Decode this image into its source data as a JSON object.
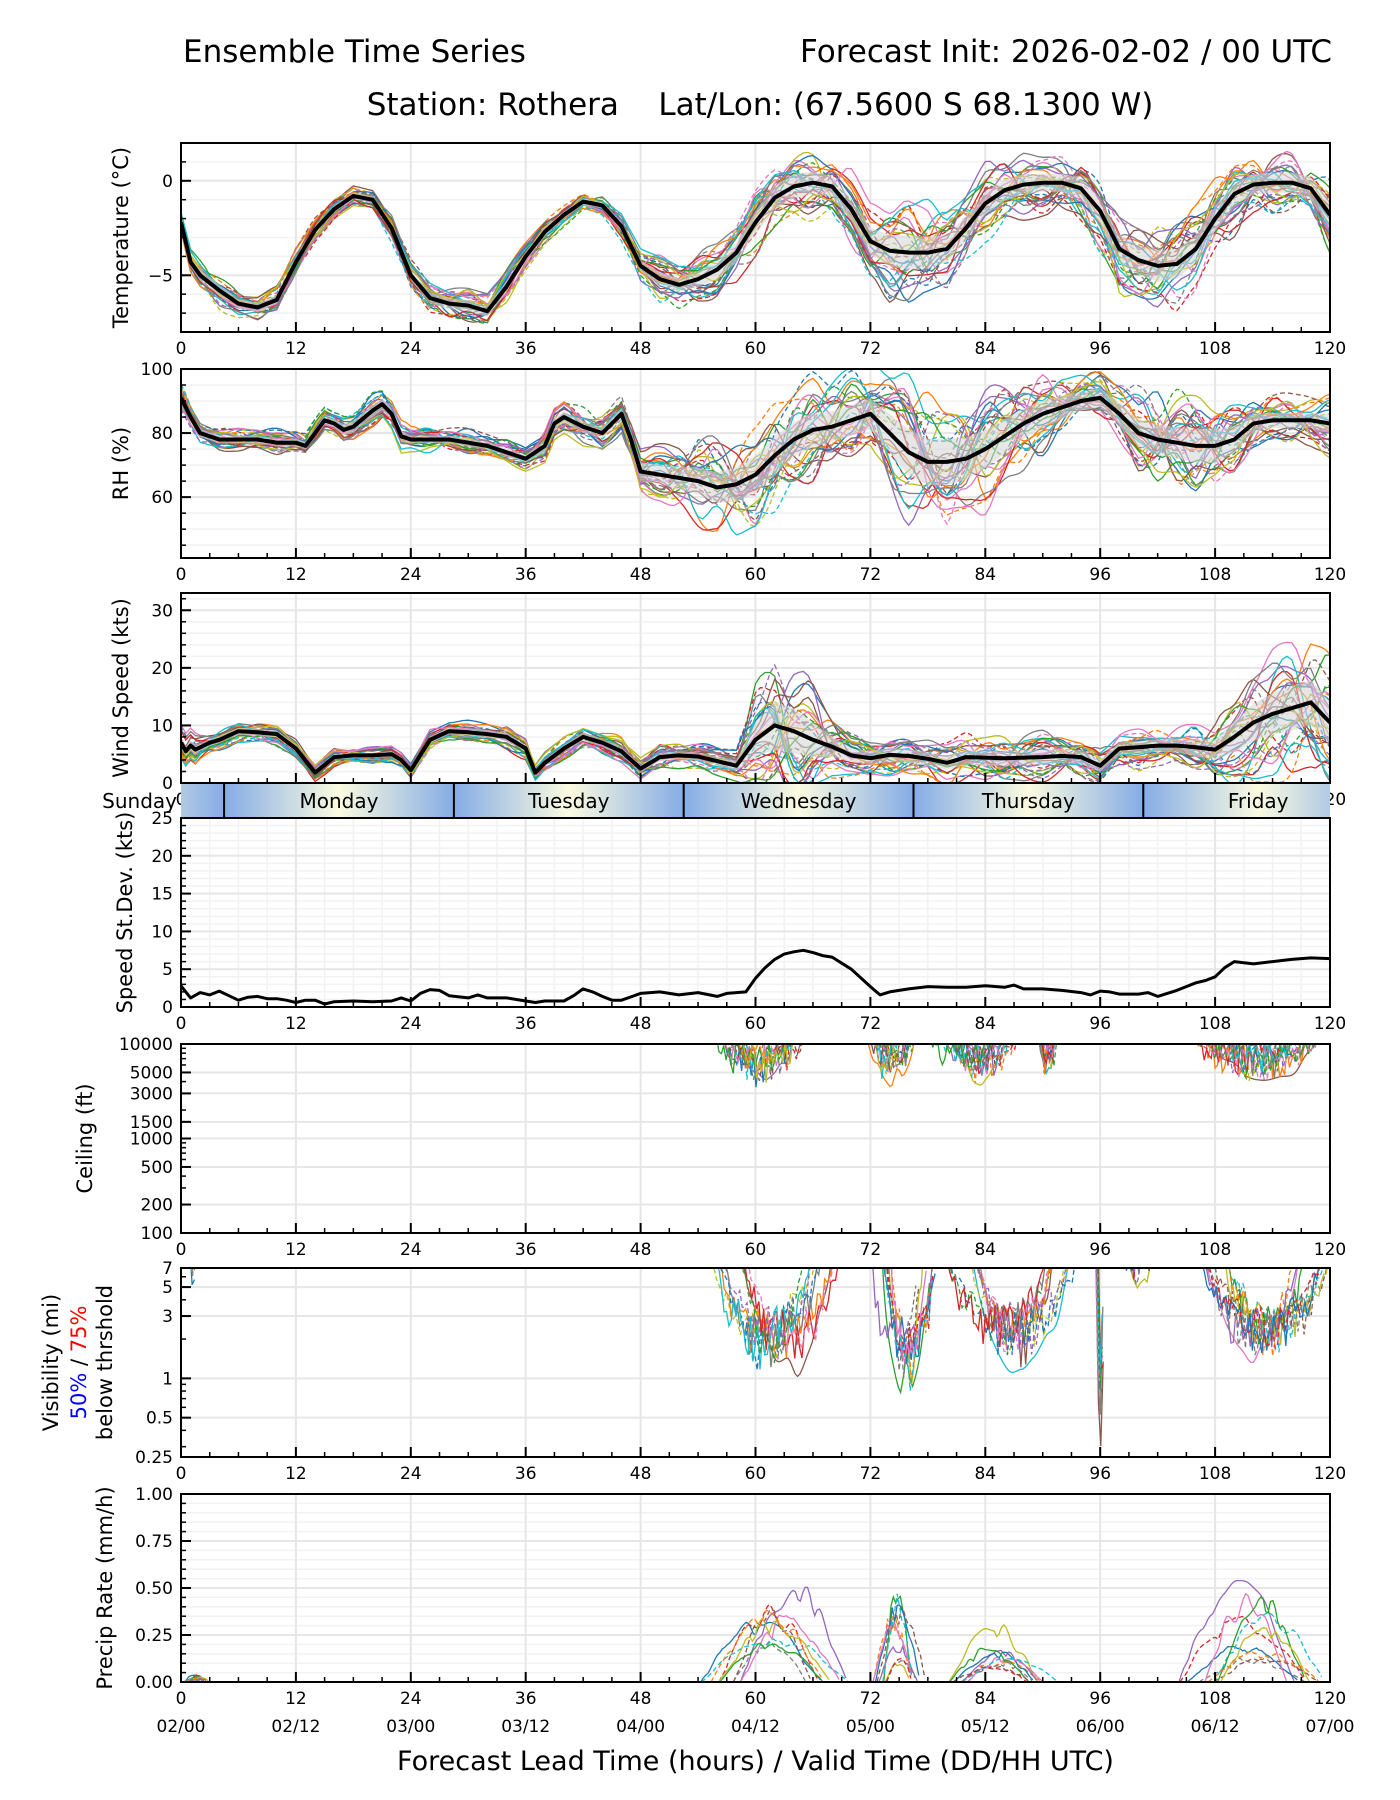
{
  "header": {
    "title_left": "Ensemble Time Series",
    "title_right": "Forecast Init: 2026-02-02 / 00 UTC",
    "station_line": "Station: Rothera    Lat/Lon: (67.5600 S 68.1300 W)"
  },
  "colors": {
    "members": [
      "#1f77b4",
      "#ff7f0e",
      "#2ca02c",
      "#d62728",
      "#9467bd",
      "#8c564b",
      "#e377c2",
      "#7f7f7f",
      "#bcbd22",
      "#17becf"
    ],
    "mean": "#000000",
    "spread": "#d3d3d3",
    "grid": "#e6e6e6",
    "day_edge": "#85ace6",
    "day_mid": "#fbfbe0",
    "vis_50": "#0000ff",
    "vis_75": "#ff0000"
  },
  "x_axis": {
    "range": [
      0,
      120
    ],
    "lead_ticks": [
      "0",
      "12",
      "24",
      "36",
      "48",
      "60",
      "72",
      "84",
      "96",
      "108",
      "120"
    ],
    "valid_ticks": [
      "02/00",
      "02/12",
      "03/00",
      "03/12",
      "04/00",
      "04/12",
      "05/00",
      "05/12",
      "06/00",
      "06/12",
      "07/00"
    ],
    "xlabel": "Forecast Lead Time (hours) / Valid Time (DD/HH UTC)"
  },
  "day_band": {
    "boundaries_hours": [
      4.5,
      28.5,
      52.5,
      76.5,
      100.5
    ],
    "labels": [
      {
        "label": "Sunday",
        "start": -19.5,
        "end": 4.5
      },
      {
        "label": "Monday",
        "start": 4.5,
        "end": 28.5
      },
      {
        "label": "Tuesday",
        "start": 28.5,
        "end": 52.5
      },
      {
        "label": "Wednesday",
        "start": 52.5,
        "end": 76.5
      },
      {
        "label": "Thursday",
        "start": 76.5,
        "end": 100.5
      },
      {
        "label": "Friday",
        "start": 100.5,
        "end": 124.5
      }
    ]
  },
  "chart_data": [
    {
      "type": "line",
      "id": "temperature",
      "ylabel": "Temperature (°C)",
      "ylim": [
        -8,
        2
      ],
      "yticks": [
        0,
        -5
      ],
      "ytick_labels": [
        "0",
        "−5"
      ],
      "grid": true,
      "ensemble_members": 30,
      "mean_x": [
        0,
        1,
        2,
        4,
        6,
        8,
        10,
        12,
        14,
        16,
        18,
        20,
        22,
        24,
        26,
        28,
        30,
        32,
        34,
        36,
        38,
        40,
        42,
        44,
        46,
        48,
        50,
        52,
        54,
        56,
        58,
        60,
        62,
        64,
        66,
        68,
        70,
        72,
        74,
        76,
        78,
        80,
        82,
        84,
        86,
        88,
        90,
        92,
        94,
        96,
        98,
        100,
        102,
        104,
        106,
        108,
        110,
        112,
        114,
        116,
        118,
        120
      ],
      "mean": [
        -2.2,
        -4.3,
        -5.0,
        -5.8,
        -6.5,
        -6.7,
        -6.3,
        -4.3,
        -2.6,
        -1.5,
        -0.8,
        -1.0,
        -2.5,
        -5.0,
        -6.2,
        -6.5,
        -6.6,
        -6.9,
        -5.6,
        -4.0,
        -2.7,
        -1.8,
        -1.1,
        -1.3,
        -2.4,
        -4.5,
        -5.2,
        -5.5,
        -5.2,
        -4.7,
        -3.8,
        -2.2,
        -0.9,
        -0.3,
        -0.1,
        -0.3,
        -1.5,
        -3.2,
        -3.7,
        -3.8,
        -3.8,
        -3.6,
        -2.5,
        -1.2,
        -0.5,
        -0.2,
        -0.1,
        -0.1,
        -0.4,
        -1.6,
        -3.6,
        -4.2,
        -4.5,
        -4.4,
        -3.6,
        -2.0,
        -0.7,
        -0.2,
        -0.1,
        -0.1,
        -0.4,
        -1.8
      ],
      "spread_halfwidth": [
        0.3,
        0.4,
        0.5,
        0.5,
        0.4,
        0.4,
        0.4,
        0.4,
        0.3,
        0.3,
        0.3,
        0.3,
        0.4,
        0.4,
        0.5,
        0.5,
        0.5,
        0.5,
        0.5,
        0.4,
        0.4,
        0.3,
        0.3,
        0.3,
        0.4,
        0.5,
        0.6,
        0.6,
        0.7,
        0.8,
        0.9,
        1.0,
        1.1,
        1.1,
        1.0,
        0.9,
        1.0,
        1.2,
        1.4,
        1.5,
        1.4,
        1.2,
        1.1,
        1.0,
        0.9,
        0.9,
        0.8,
        0.8,
        0.9,
        1.1,
        1.3,
        1.3,
        1.4,
        1.3,
        1.2,
        1.1,
        1.0,
        0.9,
        0.9,
        0.9,
        1.0,
        1.2
      ]
    },
    {
      "type": "line",
      "id": "rh",
      "ylabel": "RH (%)",
      "ylim": [
        41,
        100
      ],
      "yticks": [
        100,
        80,
        60
      ],
      "ytick_labels": [
        "100",
        "80",
        "60"
      ],
      "grid": true,
      "ensemble_members": 30,
      "mean_x": [
        0,
        1,
        2,
        4,
        6,
        8,
        10,
        12,
        13,
        14,
        15,
        16,
        17,
        18,
        20,
        21,
        22,
        23,
        24,
        26,
        28,
        30,
        32,
        34,
        36,
        38,
        39,
        40,
        42,
        44,
        46,
        47,
        48,
        50,
        52,
        54,
        56,
        58,
        60,
        62,
        64,
        66,
        68,
        70,
        72,
        74,
        76,
        78,
        80,
        82,
        84,
        86,
        88,
        90,
        92,
        94,
        96,
        98,
        100,
        102,
        104,
        106,
        108,
        110,
        112,
        114,
        116,
        118,
        120
      ],
      "mean": [
        91,
        85,
        80,
        78,
        78,
        78,
        77,
        77,
        76,
        80,
        84,
        83,
        81,
        82,
        87,
        89,
        86,
        79,
        78,
        78,
        78,
        77,
        76,
        74,
        72,
        76,
        83,
        85,
        82,
        80,
        86,
        78,
        68,
        67,
        66,
        65,
        63,
        64,
        67,
        73,
        78,
        81,
        82,
        84,
        86,
        80,
        74,
        71,
        71,
        72,
        75,
        79,
        83,
        86,
        88,
        90,
        91,
        86,
        80,
        78,
        77,
        76,
        76,
        78,
        83,
        84,
        84,
        84,
        83
      ],
      "spread_halfwidth": [
        2,
        2,
        2,
        2,
        2,
        2,
        2,
        2,
        2,
        2,
        2,
        2,
        3,
        3,
        3,
        3,
        3,
        3,
        2,
        2,
        2,
        2,
        2,
        2,
        2,
        3,
        3,
        3,
        3,
        3,
        3,
        4,
        5,
        5,
        6,
        7,
        8,
        9,
        10,
        10,
        9,
        9,
        8,
        8,
        8,
        10,
        12,
        12,
        12,
        11,
        10,
        9,
        8,
        7,
        6,
        5,
        5,
        6,
        7,
        8,
        8,
        9,
        9,
        7,
        5,
        4,
        4,
        4,
        5
      ]
    },
    {
      "type": "line",
      "id": "wind_speed",
      "ylabel": "Wind Speed (kts)",
      "ylim": [
        0,
        33
      ],
      "yticks": [
        0,
        10,
        20,
        30
      ],
      "ytick_labels": [
        "0",
        "10",
        "20",
        "30"
      ],
      "grid": true,
      "ensemble_members": 30,
      "mean_x": [
        0,
        0.5,
        1,
        1.5,
        2,
        3,
        4,
        6,
        8,
        10,
        12,
        14,
        16,
        18,
        20,
        22,
        23,
        24,
        26,
        28,
        30,
        32,
        34,
        36,
        37,
        38,
        40,
        42,
        44,
        46,
        48,
        50,
        52,
        54,
        56,
        58,
        60,
        62,
        64,
        66,
        68,
        70,
        72,
        74,
        76,
        78,
        80,
        82,
        84,
        86,
        88,
        90,
        92,
        94,
        96,
        98,
        100,
        102,
        104,
        106,
        108,
        110,
        112,
        114,
        116,
        118,
        120
      ],
      "mean": [
        7,
        5.5,
        6.5,
        5.8,
        6.2,
        7,
        7.5,
        9,
        8.8,
        8.5,
        6,
        1.8,
        4.5,
        4.8,
        4.8,
        5,
        4,
        2.2,
        7.5,
        9,
        8.8,
        8.5,
        8,
        6,
        1.8,
        3.5,
        6,
        8,
        7,
        5.5,
        2.5,
        4.5,
        4.8,
        4.6,
        3.8,
        3,
        7.5,
        10,
        9,
        7.5,
        6.3,
        4.8,
        4.3,
        4.9,
        4.7,
        4.2,
        3.5,
        4.5,
        4.4,
        4.3,
        4.4,
        4.5,
        4.7,
        4.5,
        3,
        6,
        6.2,
        6.5,
        6.5,
        6.2,
        5.8,
        8,
        10.5,
        12,
        13,
        14,
        10.5
      ],
      "spread_halfwidth": [
        1.5,
        1.5,
        1.5,
        1.5,
        1.2,
        1,
        1,
        1,
        1,
        1,
        1,
        0.8,
        0.8,
        0.8,
        0.8,
        0.9,
        0.9,
        0.8,
        1,
        1,
        1,
        1,
        1,
        1,
        0.9,
        1,
        1,
        1.2,
        1.2,
        1.2,
        1,
        1.2,
        1.2,
        1.2,
        1.3,
        1.5,
        5,
        7,
        6.5,
        5,
        3,
        2,
        2,
        2,
        2,
        2,
        2,
        2.2,
        2.2,
        2.2,
        2.2,
        2.2,
        2,
        2,
        1.8,
        1.8,
        1.8,
        1.8,
        2,
        2.5,
        3,
        4.5,
        5.5,
        6,
        6.5,
        6.5,
        6
      ]
    },
    {
      "type": "line",
      "id": "speed_stdev",
      "ylabel": "Speed St.Dev. (kts)",
      "ylim": [
        0,
        25
      ],
      "yticks": [
        0,
        5,
        10,
        15,
        20,
        25
      ],
      "ytick_labels": [
        "0",
        "5",
        "10",
        "15",
        "20",
        "25"
      ],
      "grid": true,
      "x": [
        0,
        0.5,
        1,
        2,
        3,
        4,
        5,
        6,
        7,
        8,
        9,
        10,
        11,
        12,
        13,
        14,
        15,
        16,
        18,
        20,
        22,
        23,
        24,
        25,
        26,
        27,
        28,
        30,
        31,
        32,
        34,
        36,
        37,
        38,
        40,
        41,
        42,
        43,
        44,
        45,
        46,
        48,
        50,
        52,
        54,
        56,
        57,
        58,
        59,
        60,
        61,
        62,
        63,
        64,
        65,
        66,
        67,
        68,
        70,
        72,
        73,
        74,
        76,
        78,
        80,
        82,
        84,
        86,
        87,
        88,
        90,
        92,
        94,
        95,
        96,
        97,
        98,
        100,
        101,
        102,
        104,
        106,
        107,
        108,
        109,
        110,
        112,
        114,
        116,
        118,
        120
      ],
      "values": [
        2.8,
        2.0,
        1.2,
        1.9,
        1.6,
        2.1,
        1.5,
        0.9,
        1.3,
        1.4,
        1.1,
        1.1,
        0.9,
        0.6,
        0.9,
        0.9,
        0.4,
        0.7,
        0.8,
        0.7,
        0.8,
        1.2,
        0.8,
        1.8,
        2.3,
        2.2,
        1.5,
        1.2,
        1.6,
        1.2,
        1.2,
        0.8,
        0.6,
        0.8,
        0.8,
        1.5,
        2.4,
        2.0,
        1.4,
        0.9,
        0.9,
        1.8,
        2.0,
        1.6,
        1.9,
        1.4,
        1.8,
        1.9,
        2.0,
        3.8,
        5.2,
        6.3,
        7.0,
        7.3,
        7.5,
        7.2,
        6.8,
        6.6,
        5.0,
        2.7,
        1.6,
        2.0,
        2.4,
        2.7,
        2.6,
        2.6,
        2.8,
        2.6,
        2.9,
        2.4,
        2.4,
        2.2,
        1.9,
        1.6,
        2.1,
        2.0,
        1.7,
        1.7,
        1.9,
        1.4,
        2.2,
        3.2,
        3.5,
        4.0,
        5.2,
        6.0,
        5.7,
        6.0,
        6.3,
        6.5,
        6.4
      ]
    },
    {
      "type": "line",
      "id": "ceiling",
      "ylabel": "Ceiling (ft)",
      "yscale": "log",
      "ylim": [
        100,
        10000
      ],
      "yticks": [
        10000,
        5000,
        3000,
        1500,
        1000,
        500,
        200,
        100
      ],
      "ytick_labels": [
        "10000",
        "5000",
        "3000",
        "1500",
        "1000",
        "500",
        "200",
        "100"
      ],
      "grid": true,
      "ensemble_members": 30,
      "episodes": [
        {
          "start": 54,
          "end": 67,
          "min_ft": 3300
        },
        {
          "start": 71.5,
          "end": 77,
          "min_ft": 3500
        },
        {
          "start": 78,
          "end": 88,
          "min_ft": 3400
        },
        {
          "start": 89,
          "end": 92,
          "min_ft": 4000
        },
        {
          "start": 105,
          "end": 120,
          "min_ft": 3500
        }
      ]
    },
    {
      "type": "line",
      "id": "visibility",
      "ylabel": "Visibility (mi)",
      "ylabel_line2_parts": [
        {
          "text": "50%",
          "color": "#0000ff"
        },
        {
          "text": " / ",
          "color": "#000000"
        },
        {
          "text": "75%",
          "color": "#ff0000"
        }
      ],
      "ylabel_line3": "below thrshold",
      "yscale": "log",
      "ylim": [
        0.25,
        7
      ],
      "yticks": [
        7,
        5,
        3,
        1,
        0.5,
        0.25
      ],
      "ytick_labels": [
        "7",
        "5",
        "3",
        "1",
        "0.5",
        "0.25"
      ],
      "grid": true,
      "ensemble_members": 30,
      "episodes": [
        {
          "start": 0.5,
          "end": 2,
          "min_mi": 4.8
        },
        {
          "start": 55,
          "end": 69,
          "min_mi": 0.9
        },
        {
          "start": 72,
          "end": 79,
          "min_mi": 0.65
        },
        {
          "start": 79,
          "end": 94,
          "min_mi": 1.0
        },
        {
          "start": 95.5,
          "end": 96.5,
          "min_mi": 0.25
        },
        {
          "start": 98,
          "end": 102,
          "min_mi": 4.5
        },
        {
          "start": 106,
          "end": 120,
          "min_mi": 1.0
        }
      ]
    },
    {
      "type": "line",
      "id": "precip_rate",
      "ylabel": "Precip Rate (mm/h)",
      "ylim": [
        0,
        1
      ],
      "yticks": [
        0,
        0.25,
        0.5,
        0.75,
        1.0
      ],
      "ytick_labels": [
        "0.00",
        "0.25",
        "0.50",
        "0.75",
        "1.00"
      ],
      "grid": true,
      "ensemble_members": 30,
      "episodes": [
        {
          "start": 0.3,
          "end": 3,
          "peak": 0.05
        },
        {
          "start": 54,
          "end": 70,
          "peak": 0.59
        },
        {
          "start": 72,
          "end": 78,
          "peak": 0.57
        },
        {
          "start": 78,
          "end": 92,
          "peak": 0.33
        },
        {
          "start": 104,
          "end": 120,
          "peak": 0.65
        }
      ]
    }
  ]
}
